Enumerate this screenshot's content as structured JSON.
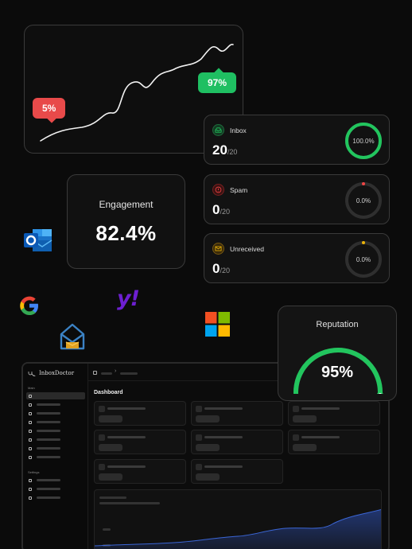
{
  "trend": {
    "low_label": "5%",
    "high_label": "97%"
  },
  "engagement": {
    "label": "Engagement",
    "value": "82.4%"
  },
  "status_cards": [
    {
      "label": "Inbox",
      "count": "20",
      "total": "/20",
      "percent": "100.0%",
      "fraction": 1.0,
      "color": "#22c55e"
    },
    {
      "label": "Spam",
      "count": "0",
      "total": "/20",
      "percent": "0.0%",
      "fraction": 0.0,
      "color": "#ef4444"
    },
    {
      "label": "Unreceived",
      "count": "0",
      "total": "/20",
      "percent": "0.0%",
      "fraction": 0.0,
      "color": "#eab308"
    }
  ],
  "logos": [
    "outlook-logo",
    "google-logo",
    "yahoo-logo",
    "proton-mail-logo",
    "microsoft-logo"
  ],
  "yahoo": {
    "text": "y!"
  },
  "reputation": {
    "label": "Reputation",
    "value": "95%",
    "fraction": 0.95,
    "color": "#22c55e"
  },
  "dashboard": {
    "brand": "InboxDoctor",
    "section_main": "Main",
    "section_settings": "Settings",
    "title": "Dashboard",
    "breadcrumb_sep": "›"
  },
  "colors": {
    "green": "#22c55e",
    "red": "#ef4444",
    "yellow": "#eab308",
    "background": "#0b0b0b"
  }
}
